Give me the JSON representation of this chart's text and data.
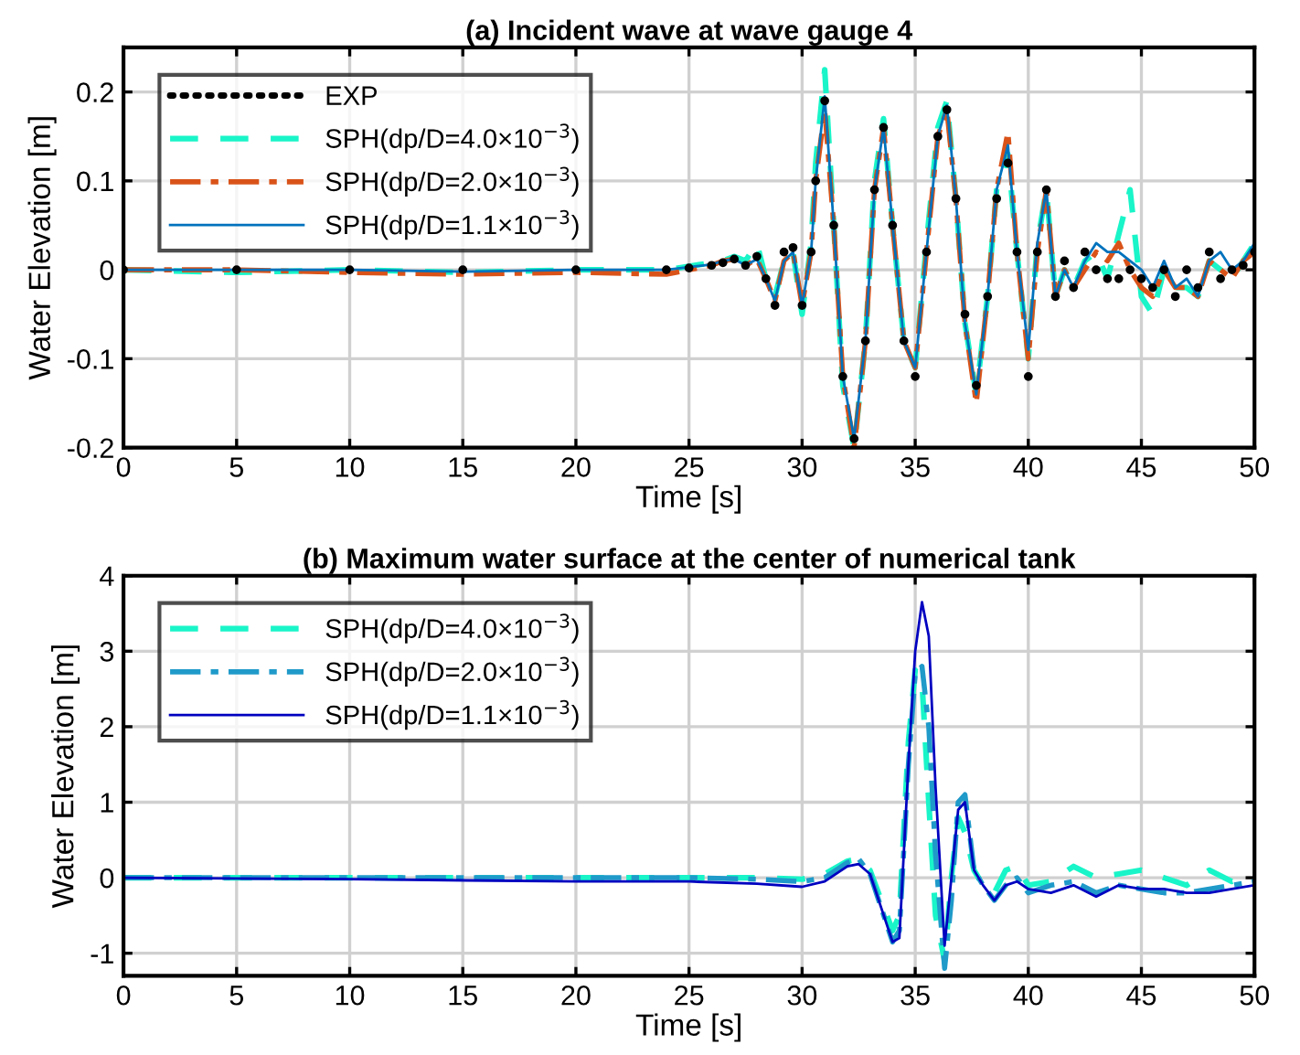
{
  "chart_data": [
    {
      "type": "line",
      "title": "(a) Incident wave at wave gauge 4",
      "xlabel": "Time [s]",
      "ylabel": "Water Elevation [m]",
      "xlim": [
        0,
        50
      ],
      "xticks": [
        0,
        5,
        10,
        15,
        20,
        25,
        30,
        35,
        40,
        45,
        50
      ],
      "ylim": [
        -0.2,
        0.25
      ],
      "yticks": [
        -0.2,
        -0.1,
        0,
        0.1,
        0.2
      ],
      "grid": true,
      "legend": "top left",
      "series": [
        {
          "name": "EXP",
          "type": "scatter",
          "marker": "circle",
          "color": "#000000",
          "x": [
            0,
            5,
            10,
            15,
            20,
            24,
            25,
            26,
            26.5,
            27,
            27.5,
            28,
            28.4,
            28.8,
            29.2,
            29.6,
            30,
            30.4,
            30.6,
            31,
            31.4,
            31.8,
            32.3,
            32.8,
            33.2,
            33.6,
            34,
            34.5,
            35,
            35.5,
            36,
            36.4,
            36.8,
            37.2,
            37.7,
            38.2,
            38.6,
            39.1,
            39.5,
            40,
            40.4,
            40.8,
            41.2,
            41.6,
            42,
            42.5,
            43,
            43.5,
            44,
            44.5,
            45,
            45.5,
            46,
            46.5,
            47,
            47.5,
            48,
            48.5,
            49,
            49.5,
            50
          ],
          "values": [
            0,
            0,
            0,
            0,
            0,
            0,
            0.002,
            0.005,
            0.008,
            0.012,
            0.005,
            0.015,
            -0.01,
            -0.04,
            0.02,
            0.025,
            -0.04,
            0.02,
            0.1,
            0.19,
            0.05,
            -0.12,
            -0.19,
            -0.08,
            0.09,
            0.16,
            0.05,
            -0.08,
            -0.12,
            0.02,
            0.15,
            0.18,
            0.08,
            -0.05,
            -0.13,
            -0.03,
            0.08,
            0.12,
            0.02,
            -0.12,
            0.02,
            0.09,
            -0.03,
            0.01,
            -0.02,
            0.02,
            0.0,
            -0.01,
            -0.01,
            0.0,
            -0.01,
            -0.02,
            0.0,
            -0.03,
            0.0,
            -0.02,
            0.02,
            -0.01,
            0.0,
            0.005,
            0.02
          ]
        },
        {
          "name": "SPH(dp/D=4.0×10$^{−3}$)",
          "color": "#19f5c8",
          "line_style": "dashed",
          "x": [
            0,
            5,
            10,
            15,
            20,
            24,
            25,
            26,
            26.5,
            27,
            27.5,
            28,
            28.4,
            28.8,
            29.2,
            29.6,
            30,
            30.4,
            30.6,
            31,
            31.4,
            31.8,
            32.3,
            32.8,
            33.2,
            33.6,
            34,
            34.5,
            35,
            35.5,
            36,
            36.4,
            36.8,
            37.2,
            37.7,
            38.2,
            38.6,
            39.1,
            39.5,
            40,
            40.4,
            40.8,
            41.2,
            41.6,
            42,
            42.5,
            43,
            43.5,
            44,
            44.5,
            45,
            45.5,
            46,
            46.5,
            47,
            47.5,
            48,
            48.5,
            49,
            49.5,
            50
          ],
          "values": [
            0,
            -0.003,
            0,
            -0.003,
            0,
            0,
            0.004,
            0.008,
            0.01,
            0.015,
            0.01,
            0.03,
            -0.01,
            -0.03,
            0.01,
            0.02,
            -0.05,
            0.03,
            0.12,
            0.225,
            0.05,
            -0.13,
            -0.2,
            -0.08,
            0.1,
            0.17,
            0.05,
            -0.08,
            -0.11,
            0.03,
            0.16,
            0.19,
            0.08,
            -0.06,
            -0.14,
            -0.03,
            0.09,
            0.13,
            0.02,
            -0.1,
            0.03,
            0.09,
            -0.03,
            0.0,
            -0.02,
            0.01,
            0.02,
            -0.01,
            0.04,
            0.09,
            -0.03,
            -0.05,
            0.0,
            -0.02,
            -0.02,
            -0.03,
            0.01,
            0.0,
            -0.01,
            0.01,
            0.03
          ]
        },
        {
          "name": "SPH(dp/D=2.0×10$^{−3}$)",
          "color": "#d95319",
          "line_style": "dashdot",
          "x": [
            0,
            5,
            10,
            15,
            20,
            24,
            25,
            26,
            26.5,
            27,
            27.5,
            28,
            28.4,
            28.8,
            29.2,
            29.6,
            30,
            30.4,
            30.6,
            31,
            31.4,
            31.8,
            32.3,
            32.8,
            33.2,
            33.6,
            34,
            34.5,
            35,
            35.5,
            36,
            36.4,
            36.8,
            37.2,
            37.7,
            38.2,
            38.6,
            39.1,
            39.5,
            40,
            40.4,
            40.8,
            41.2,
            41.6,
            42,
            42.5,
            43,
            43.5,
            44,
            44.5,
            45,
            45.5,
            46,
            46.5,
            47,
            47.5,
            48,
            48.5,
            49,
            49.5,
            50
          ],
          "values": [
            0,
            0,
            -0.003,
            -0.005,
            -0.003,
            -0.005,
            0,
            0.005,
            0.01,
            0.012,
            0.005,
            0.012,
            -0.01,
            -0.035,
            0.01,
            0.02,
            -0.04,
            0.02,
            0.1,
            0.18,
            0.05,
            -0.12,
            -0.2,
            -0.08,
            0.09,
            0.16,
            0.05,
            -0.08,
            -0.11,
            0.02,
            0.15,
            0.18,
            0.08,
            -0.06,
            -0.15,
            -0.03,
            0.09,
            0.155,
            0.02,
            -0.1,
            0.02,
            0.09,
            -0.03,
            0.0,
            -0.02,
            0.0,
            0.02,
            0.01,
            0.03,
            0.0,
            -0.02,
            -0.03,
            0.0,
            -0.02,
            -0.02,
            -0.03,
            0.01,
            0.0,
            -0.01,
            0.01,
            0.02
          ]
        },
        {
          "name": "SPH(dp/D=1.1×10$^{−3}$)",
          "color": "#0072bd",
          "line_style": "solid",
          "x": [
            0,
            5,
            10,
            15,
            20,
            24,
            25,
            26,
            26.5,
            27,
            27.5,
            28,
            28.4,
            28.8,
            29.2,
            29.6,
            30,
            30.4,
            30.6,
            31,
            31.4,
            31.8,
            32.3,
            32.8,
            33.2,
            33.6,
            34,
            34.5,
            35,
            35.5,
            36,
            36.4,
            36.8,
            37.2,
            37.7,
            38.2,
            38.6,
            39.1,
            39.5,
            40,
            40.4,
            40.8,
            41.2,
            41.6,
            42,
            42.5,
            43,
            43.5,
            44,
            44.5,
            45,
            45.5,
            46,
            46.5,
            47,
            47.5,
            48,
            48.5,
            49,
            49.5,
            50
          ],
          "values": [
            0,
            0,
            0,
            -0.002,
            0,
            0,
            0.003,
            0.006,
            0.01,
            0.012,
            0.005,
            0.012,
            -0.01,
            -0.035,
            0.01,
            0.02,
            -0.04,
            0.02,
            0.1,
            0.195,
            0.05,
            -0.12,
            -0.19,
            -0.08,
            0.09,
            0.16,
            0.05,
            -0.08,
            -0.11,
            0.02,
            0.15,
            0.185,
            0.08,
            -0.06,
            -0.14,
            -0.03,
            0.09,
            0.14,
            0.02,
            -0.09,
            0.03,
            0.09,
            -0.03,
            0.0,
            -0.02,
            0.01,
            0.03,
            0.02,
            0.02,
            0.01,
            0.0,
            -0.02,
            0.01,
            -0.02,
            -0.01,
            -0.03,
            0.01,
            0.02,
            0.0,
            0.01,
            0.03
          ]
        }
      ]
    },
    {
      "type": "line",
      "title": "(b) Maximum water surface at the center of numerical tank",
      "xlabel": "Time [s]",
      "ylabel": "Water Elevation [m]",
      "xlim": [
        0,
        50
      ],
      "xticks": [
        0,
        5,
        10,
        15,
        20,
        25,
        30,
        35,
        40,
        45,
        50
      ],
      "ylim": [
        -1.3,
        4
      ],
      "yticks": [
        -1,
        0,
        1,
        2,
        3,
        4
      ],
      "grid": true,
      "legend": "top left",
      "series": [
        {
          "name": "SPH(dp/D=4.0×10$^{−3}$)",
          "color": "#19f5c8",
          "line_style": "dashed",
          "x": [
            0,
            10,
            20,
            25,
            28,
            30,
            31,
            32,
            32.5,
            33,
            33.5,
            34,
            34.3,
            34.7,
            35,
            35.3,
            35.6,
            35.9,
            36.3,
            36.6,
            36.9,
            37.2,
            37.6,
            38,
            38.5,
            39,
            39.5,
            40,
            41,
            42,
            43,
            44,
            45,
            46,
            47,
            48,
            49,
            50
          ],
          "values": [
            0,
            0,
            0,
            0,
            0,
            -0.02,
            0.05,
            0.22,
            0.25,
            0.1,
            -0.3,
            -0.7,
            -0.5,
            1.8,
            2.75,
            2.6,
            1.0,
            -0.5,
            -1.1,
            0.0,
            0.8,
            0.6,
            0.1,
            -0.1,
            -0.2,
            0.1,
            0.15,
            -0.1,
            -0.05,
            0.15,
            0.0,
            0.05,
            0.1,
            0.0,
            -0.1,
            0.1,
            -0.05,
            0.05
          ]
        },
        {
          "name": "SPH(dp/D=2.0×10$^{−3}$)",
          "color": "#1f9ac9",
          "line_style": "dashdot",
          "x": [
            0,
            10,
            20,
            25,
            28,
            30,
            31,
            32,
            32.5,
            33,
            33.5,
            34,
            34.3,
            34.7,
            35,
            35.3,
            35.6,
            35.9,
            36.3,
            36.6,
            36.9,
            37.2,
            37.6,
            38,
            38.5,
            39,
            39.5,
            40,
            41,
            42,
            43,
            44,
            45,
            46,
            47,
            48,
            49,
            50
          ],
          "values": [
            0,
            0,
            0,
            0,
            -0.02,
            -0.05,
            0.0,
            0.2,
            0.25,
            0.05,
            -0.4,
            -0.85,
            -0.7,
            1.5,
            2.7,
            2.8,
            2.0,
            0.3,
            -1.2,
            -0.3,
            1.0,
            1.1,
            0.1,
            -0.1,
            -0.3,
            -0.1,
            0.0,
            -0.2,
            -0.1,
            -0.05,
            -0.2,
            -0.1,
            -0.15,
            -0.2,
            -0.2,
            -0.15,
            -0.1,
            -0.05
          ]
        },
        {
          "name": "SPH(dp/D=1.1×10$^{−3}$)",
          "color": "#0000c0",
          "line_style": "solid",
          "x": [
            0,
            10,
            20,
            25,
            28,
            30,
            31,
            32,
            32.5,
            33,
            33.5,
            34,
            34.3,
            34.7,
            35,
            35.3,
            35.6,
            35.9,
            36.3,
            36.6,
            36.9,
            37.2,
            37.6,
            38,
            38.5,
            39,
            39.5,
            40,
            41,
            42,
            43,
            44,
            45,
            46,
            47,
            48,
            49,
            50
          ],
          "values": [
            0,
            -0.02,
            -0.05,
            -0.05,
            -0.08,
            -0.12,
            -0.05,
            0.15,
            0.18,
            0.05,
            -0.4,
            -0.85,
            -0.8,
            1.5,
            3.0,
            3.65,
            3.2,
            1.2,
            -0.9,
            0.0,
            0.9,
            1.0,
            0.1,
            -0.1,
            -0.3,
            -0.1,
            -0.05,
            -0.15,
            -0.2,
            -0.1,
            -0.25,
            -0.1,
            -0.15,
            -0.15,
            -0.2,
            -0.2,
            -0.15,
            -0.1
          ]
        }
      ]
    }
  ]
}
